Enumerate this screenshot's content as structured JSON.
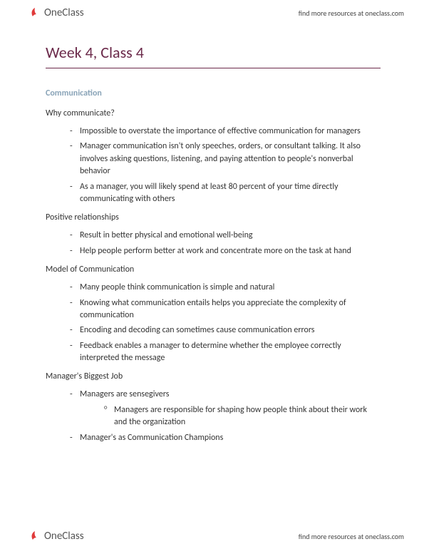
{
  "brand": {
    "part1": "One",
    "part2": "Class",
    "resources_text": "find more resources at oneclass.com"
  },
  "title": "Week 4, Class 4",
  "colors": {
    "title_color": "#6b2a4a",
    "section_label_color": "#8aa4b8",
    "body_text": "#333333",
    "background": "#ffffff"
  },
  "typography": {
    "title_fontsize": 22,
    "section_label_fontsize": 12,
    "body_fontsize": 12,
    "subheading_fontsize": 12
  },
  "section_label": "Communication",
  "groups": [
    {
      "heading": "Why communicate?",
      "items": [
        {
          "text": "Impossible to overstate the importance of effective communication for managers"
        },
        {
          "text": "Manager communication isn't only speeches, orders, or consultant talking. It also involves asking questions, listening, and paying attention to people's nonverbal behavior"
        },
        {
          "text": "As a manager, you will likely spend at least 80 percent of your time directly communicating with others"
        }
      ]
    },
    {
      "heading": "Positive relationships",
      "items": [
        {
          "text": "Result in better physical and emotional well-being"
        },
        {
          "text": "Help people perform better at work and concentrate more on the task at hand"
        }
      ]
    },
    {
      "heading": "Model of Communication",
      "items": [
        {
          "text": "Many people think communication is simple and natural"
        },
        {
          "text": "Knowing what communication entails helps you appreciate the complexity of communication"
        },
        {
          "text": "Encoding and decoding can sometimes cause communication errors"
        },
        {
          "text": "Feedback enables a manager to determine whether the employee correctly interpreted the message"
        }
      ]
    },
    {
      "heading": "Manager's Biggest Job",
      "items": [
        {
          "text": "Managers are sensegivers",
          "subitems": [
            {
              "text": "Managers are responsible for shaping how people think about their work and the organization"
            }
          ]
        },
        {
          "text": "Manager's as Communication Champions"
        }
      ]
    }
  ]
}
